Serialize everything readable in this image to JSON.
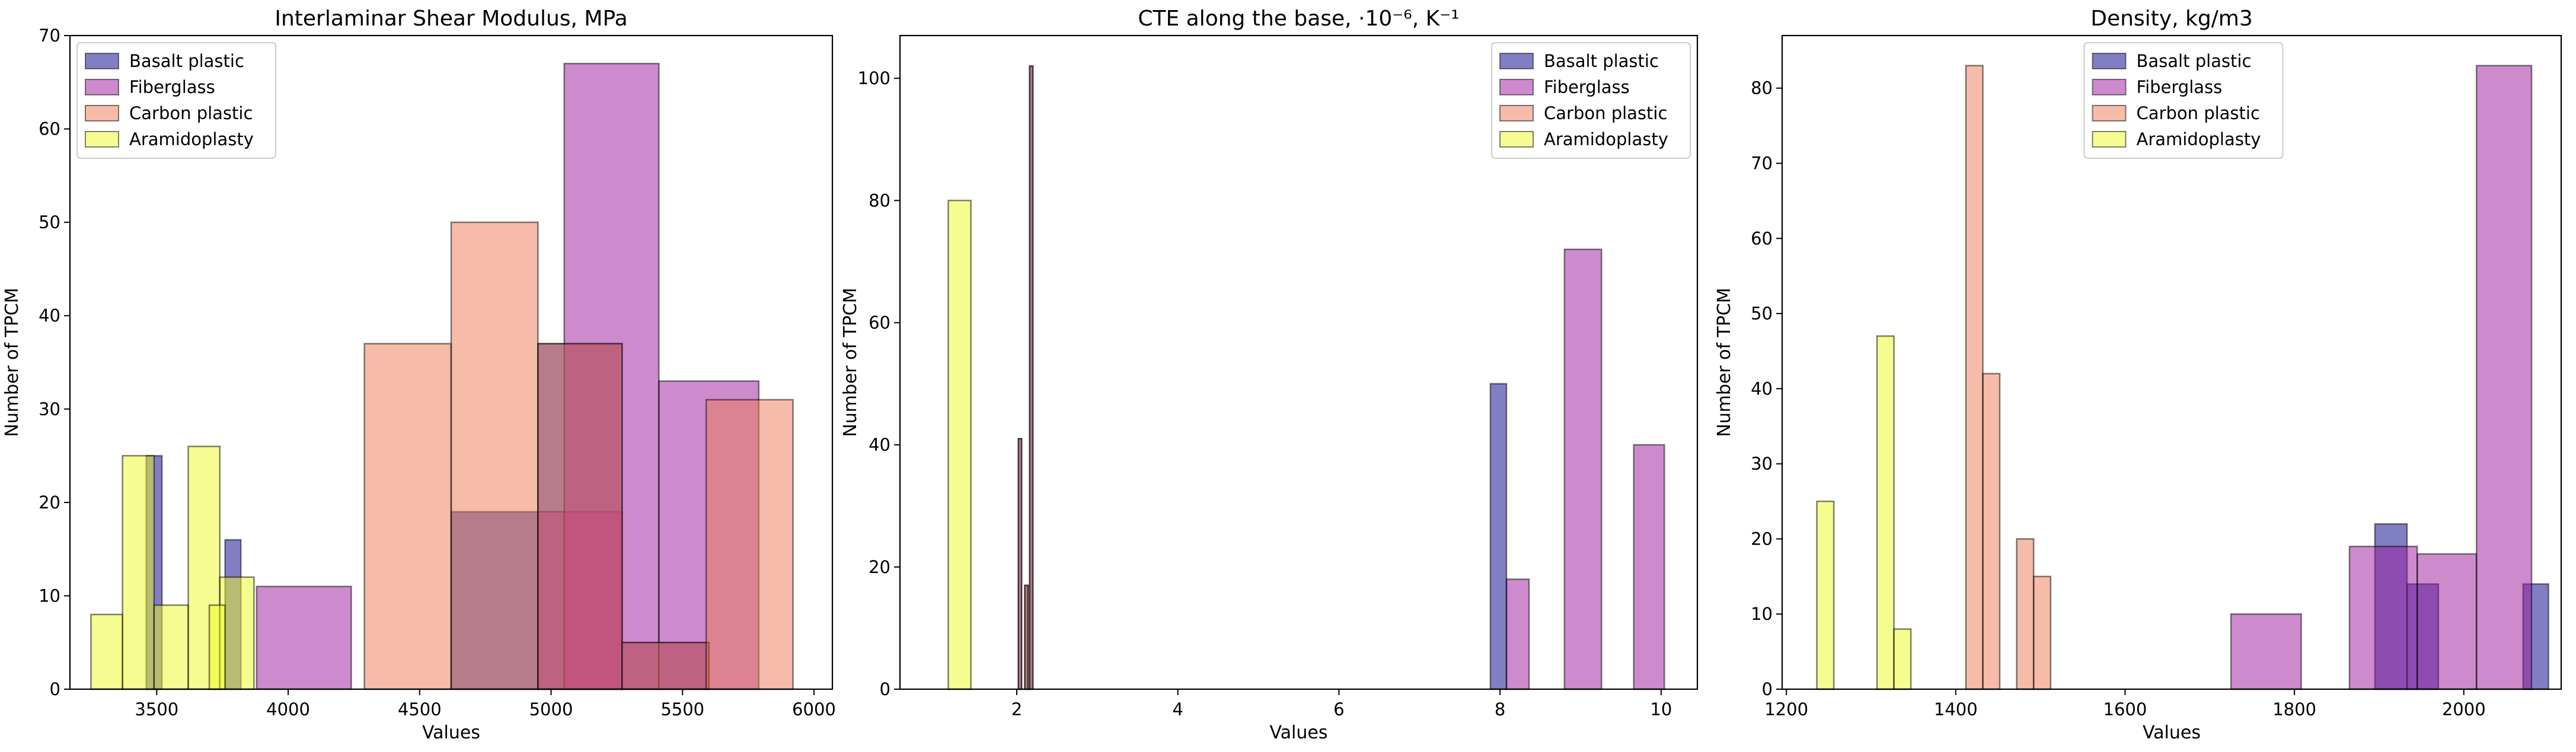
{
  "series_styles": [
    {
      "name": "Basalt plastic",
      "color": "#03008a",
      "alpha": 0.5
    },
    {
      "name": "Fiberglass",
      "color": "#9c179e",
      "alpha": 0.5
    },
    {
      "name": "Carbon plastic",
      "color": "#ed7953",
      "alpha": 0.5
    },
    {
      "name": "Aramidoplasty",
      "color": "#f0f921",
      "alpha": 0.5
    }
  ],
  "edge_color": "#000000",
  "chart_data": [
    {
      "type": "histogram",
      "title": "Interlaminar Shear Modulus, MPa",
      "xlabel": "Values",
      "ylabel": "Number of TPCM",
      "xlim": [
        3170,
        6070
      ],
      "ylim": [
        0,
        70
      ],
      "xticks": [
        3500,
        4000,
        4500,
        5000,
        5500,
        6000
      ],
      "yticks": [
        0,
        10,
        20,
        30,
        40,
        50,
        60,
        70
      ],
      "legend": "top-left",
      "series": [
        {
          "name": "Basalt plastic",
          "bars": [
            {
              "x0": 3460,
              "x1": 3520,
              "y": 25
            },
            {
              "x0": 3760,
              "x1": 3820,
              "y": 16
            },
            {
              "x0": 4620,
              "x1": 4950,
              "y": 19
            },
            {
              "x0": 4950,
              "x1": 5270,
              "y": 37
            },
            {
              "x0": 5270,
              "x1": 5600,
              "y": 5
            }
          ]
        },
        {
          "name": "Fiberglass",
          "bars": [
            {
              "x0": 3880,
              "x1": 4240,
              "y": 11
            },
            {
              "x0": 4950,
              "x1": 5270,
              "y": 19
            },
            {
              "x0": 5050,
              "x1": 5410,
              "y": 67
            },
            {
              "x0": 5410,
              "x1": 5790,
              "y": 33
            }
          ]
        },
        {
          "name": "Carbon plastic",
          "bars": [
            {
              "x0": 4290,
              "x1": 4620,
              "y": 37
            },
            {
              "x0": 4620,
              "x1": 4950,
              "y": 50
            },
            {
              "x0": 4950,
              "x1": 5270,
              "y": 37
            },
            {
              "x0": 5270,
              "x1": 5600,
              "y": 5
            },
            {
              "x0": 5590,
              "x1": 5920,
              "y": 31
            }
          ]
        },
        {
          "name": "Aramidoplasty",
          "bars": [
            {
              "x0": 3250,
              "x1": 3370,
              "y": 8
            },
            {
              "x0": 3370,
              "x1": 3490,
              "y": 25
            },
            {
              "x0": 3490,
              "x1": 3620,
              "y": 9
            },
            {
              "x0": 3620,
              "x1": 3740,
              "y": 26
            },
            {
              "x0": 3740,
              "x1": 3870,
              "y": 12
            },
            {
              "x0": 3700,
              "x1": 3760,
              "y": 9
            }
          ]
        }
      ]
    },
    {
      "type": "histogram",
      "title": "CTE along the base, ·10⁻⁶, K⁻¹",
      "xlabel": "Values",
      "ylabel": "Number of TPCM",
      "xlim": [
        0.55,
        10.45
      ],
      "ylim": [
        0,
        107
      ],
      "xticks": [
        2,
        4,
        6,
        8,
        10
      ],
      "yticks": [
        0,
        20,
        40,
        60,
        80,
        100
      ],
      "legend": "top-right",
      "series": [
        {
          "name": "Basalt plastic",
          "bars": [
            {
              "x0": 7.88,
              "x1": 8.08,
              "y": 50
            },
            {
              "x0": 2.02,
              "x1": 2.06,
              "y": 41
            },
            {
              "x0": 2.1,
              "x1": 2.14,
              "y": 17
            },
            {
              "x0": 2.16,
              "x1": 2.2,
              "y": 102
            }
          ]
        },
        {
          "name": "Fiberglass",
          "bars": [
            {
              "x0": 8.08,
              "x1": 8.36,
              "y": 18
            },
            {
              "x0": 8.8,
              "x1": 9.26,
              "y": 72
            },
            {
              "x0": 9.66,
              "x1": 10.04,
              "y": 40
            }
          ]
        },
        {
          "name": "Carbon plastic",
          "bars": [
            {
              "x0": 2.02,
              "x1": 2.06,
              "y": 41
            },
            {
              "x0": 2.1,
              "x1": 2.14,
              "y": 17
            },
            {
              "x0": 2.16,
              "x1": 2.2,
              "y": 102
            }
          ]
        },
        {
          "name": "Aramidoplasty",
          "bars": [
            {
              "x0": 1.15,
              "x1": 1.43,
              "y": 80
            }
          ]
        }
      ]
    },
    {
      "type": "histogram",
      "title": "Density, kg/m3",
      "xlabel": "Values",
      "ylabel": "Number of TPCM",
      "xlim": [
        1195,
        2115
      ],
      "ylim": [
        0,
        87
      ],
      "xticks": [
        1200,
        1400,
        1600,
        1800,
        2000
      ],
      "yticks": [
        0,
        10,
        20,
        30,
        40,
        50,
        60,
        70,
        80
      ],
      "legend": "top-center",
      "series": [
        {
          "name": "Basalt plastic",
          "bars": [
            {
              "x0": 1895,
              "x1": 1933,
              "y": 22
            },
            {
              "x0": 1933,
              "x1": 1970,
              "y": 14
            },
            {
              "x0": 2070,
              "x1": 2100,
              "y": 14
            }
          ]
        },
        {
          "name": "Fiberglass",
          "bars": [
            {
              "x0": 1725,
              "x1": 1808,
              "y": 10
            },
            {
              "x0": 1865,
              "x1": 1945,
              "y": 19
            },
            {
              "x0": 1945,
              "x1": 2015,
              "y": 18
            },
            {
              "x0": 2015,
              "x1": 2080,
              "y": 83
            }
          ]
        },
        {
          "name": "Carbon plastic",
          "bars": [
            {
              "x0": 1412,
              "x1": 1432,
              "y": 83
            },
            {
              "x0": 1432,
              "x1": 1452,
              "y": 42
            },
            {
              "x0": 1472,
              "x1": 1492,
              "y": 20
            },
            {
              "x0": 1492,
              "x1": 1512,
              "y": 15
            }
          ]
        },
        {
          "name": "Aramidoplasty",
          "bars": [
            {
              "x0": 1236,
              "x1": 1256,
              "y": 25
            },
            {
              "x0": 1307,
              "x1": 1327,
              "y": 47
            },
            {
              "x0": 1327,
              "x1": 1347,
              "y": 8
            }
          ]
        }
      ]
    }
  ]
}
